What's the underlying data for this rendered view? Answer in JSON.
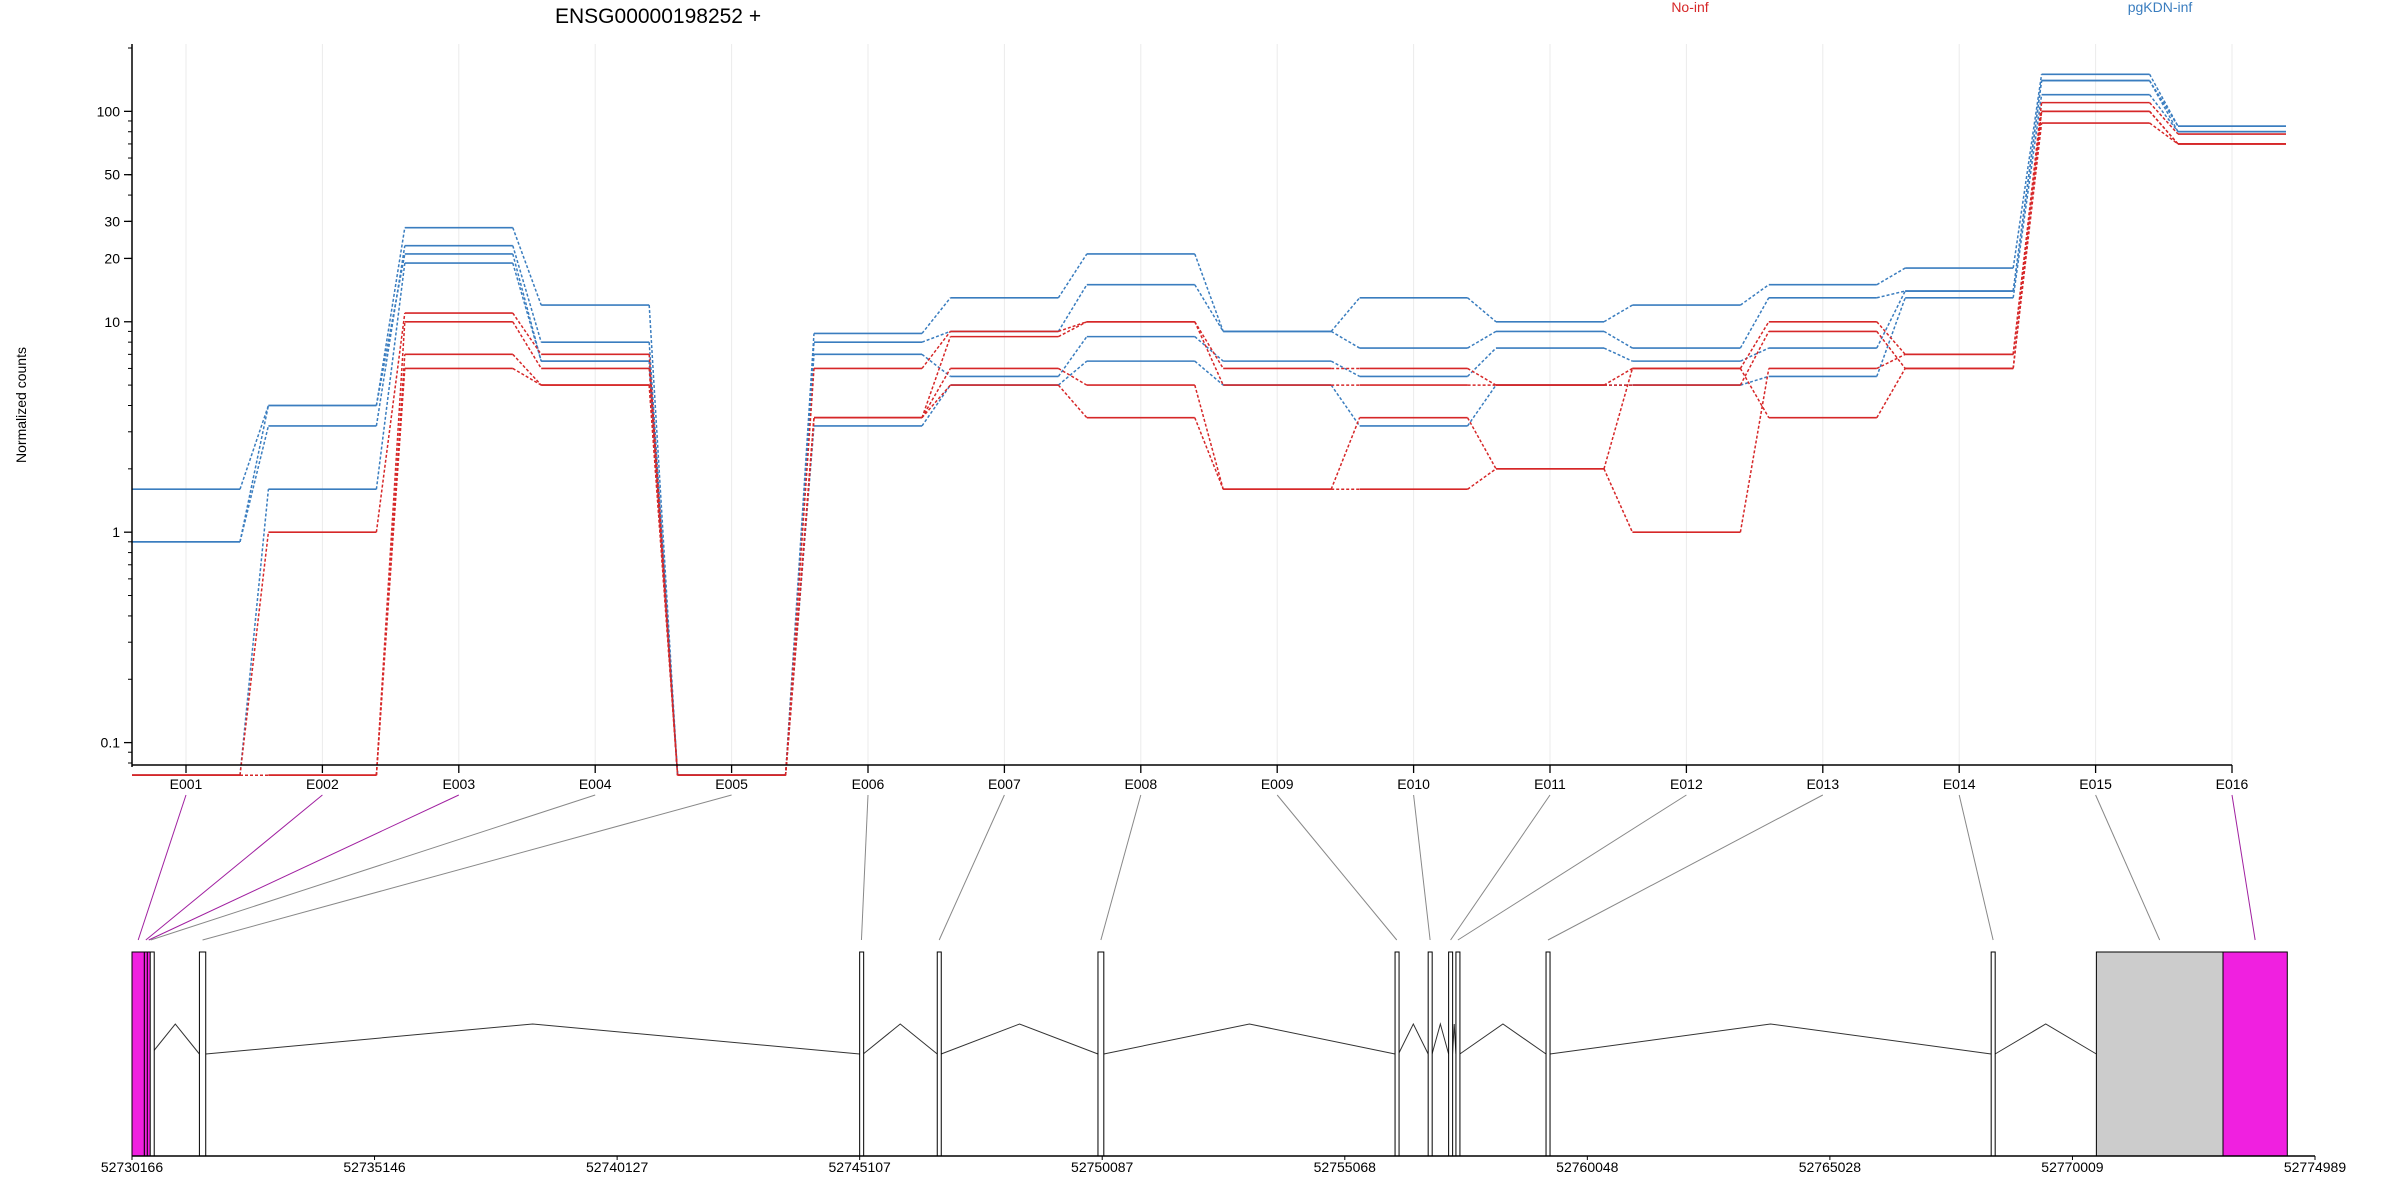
{
  "chart_data": {
    "type": "line",
    "title": "ENSG00000198252 +",
    "ylabel": "Normalized counts",
    "xlabel": "",
    "y_scale": "log",
    "ylim": [
      0.08,
      200
    ],
    "y_ticks": [
      {
        "value": 0.1,
        "label": "0.1"
      },
      {
        "value": 1,
        "label": "1"
      },
      {
        "value": 10,
        "label": "10"
      },
      {
        "value": 20,
        "label": "20"
      },
      {
        "value": 30,
        "label": "30"
      },
      {
        "value": 50,
        "label": "50"
      },
      {
        "value": 100,
        "label": "100"
      }
    ],
    "grid": "vertical",
    "legend": [
      {
        "name": "No-inf",
        "color": "#d62728"
      },
      {
        "name": "pgKDN-inf",
        "color": "#3a7dbf"
      }
    ],
    "categories": [
      "E001",
      "E002",
      "E003",
      "E004",
      "E005",
      "E006",
      "E007",
      "E008",
      "E009",
      "E010",
      "E011",
      "E012",
      "E013",
      "E014",
      "E015",
      "E016"
    ],
    "series": [
      {
        "group": "pgKDN-inf",
        "color": "#3a7dbf",
        "values": [
          1.6,
          4.0,
          28,
          12,
          0.07,
          8.8,
          13,
          21,
          9.0,
          13,
          10,
          12,
          15,
          18,
          150,
          85
        ]
      },
      {
        "group": "pgKDN-inf",
        "color": "#3a7dbf",
        "values": [
          0.9,
          3.2,
          23,
          8.0,
          0.07,
          8.0,
          9.0,
          15,
          9.0,
          7.5,
          9.0,
          7.5,
          13,
          14,
          140,
          85
        ]
      },
      {
        "group": "pgKDN-inf",
        "color": "#3a7dbf",
        "values": [
          0.9,
          4.0,
          21,
          6.5,
          0.07,
          7.0,
          5.5,
          8.5,
          6.5,
          5.5,
          7.5,
          6.5,
          7.5,
          14,
          140,
          80
        ]
      },
      {
        "group": "pgKDN-inf",
        "color": "#3a7dbf",
        "values": [
          0.07,
          1.6,
          19,
          6.5,
          0.07,
          3.2,
          5.0,
          6.5,
          5.0,
          3.2,
          5.0,
          5.0,
          5.5,
          13,
          120,
          80
        ]
      },
      {
        "group": "No-inf",
        "color": "#d62728",
        "values": [
          0.07,
          1.0,
          11,
          7.0,
          0.07,
          6.0,
          9.0,
          10,
          6.0,
          6.0,
          5.0,
          6.0,
          10,
          7.0,
          110,
          78
        ]
      },
      {
        "group": "No-inf",
        "color": "#d62728",
        "values": [
          0.07,
          0.07,
          10,
          6.0,
          0.07,
          3.5,
          8.5,
          10,
          5.0,
          5.0,
          5.0,
          5.0,
          9.0,
          6.0,
          100,
          70
        ]
      },
      {
        "group": "No-inf",
        "color": "#d62728",
        "values": [
          0.07,
          0.07,
          7.0,
          5.0,
          0.07,
          3.5,
          6.0,
          5.0,
          1.6,
          3.5,
          2.0,
          6.0,
          3.5,
          6.0,
          88,
          70
        ]
      },
      {
        "group": "No-inf",
        "color": "#d62728",
        "values": [
          0.07,
          0.07,
          6.0,
          5.0,
          0.07,
          3.5,
          5.0,
          3.5,
          1.6,
          1.6,
          2.0,
          1.0,
          6.0,
          7.0,
          100,
          70
        ]
      }
    ],
    "gene_model": {
      "genomic_start": 52730166,
      "genomic_end": 52774989,
      "axis_ticks": [
        52730166,
        52735146,
        52740127,
        52745107,
        52750087,
        52755068,
        52760048,
        52765028,
        52770009,
        52774989
      ],
      "exons": [
        {
          "id": "E001",
          "start": 52730166,
          "end": 52730420,
          "fill": "#f020e0"
        },
        {
          "id": "E002",
          "start": 52730420,
          "end": 52730480,
          "fill": "#f020e0"
        },
        {
          "id": "E003",
          "start": 52730480,
          "end": 52730540,
          "fill": "#f020e0"
        },
        {
          "id": "E004",
          "start": 52730540,
          "end": 52730560,
          "fill": "#ffffff"
        },
        {
          "id": "E005",
          "start": 52731550,
          "end": 52731680,
          "fill": "#ffffff"
        },
        {
          "id": "E006",
          "start": 52745107,
          "end": 52745180,
          "fill": "#ffffff"
        },
        {
          "id": "E007",
          "start": 52746700,
          "end": 52746780,
          "fill": "#ffffff"
        },
        {
          "id": "E008",
          "start": 52750000,
          "end": 52750120,
          "fill": "#ffffff"
        },
        {
          "id": "E009",
          "start": 52756100,
          "end": 52756170,
          "fill": "#ffffff"
        },
        {
          "id": "E010",
          "start": 52756780,
          "end": 52756860,
          "fill": "#ffffff"
        },
        {
          "id": "E011",
          "start": 52757200,
          "end": 52757280,
          "fill": "#ffffff"
        },
        {
          "id": "E012",
          "start": 52757350,
          "end": 52757430,
          "fill": "#ffffff"
        },
        {
          "id": "E013",
          "start": 52759200,
          "end": 52759280,
          "fill": "#ffffff"
        },
        {
          "id": "E014",
          "start": 52768340,
          "end": 52768420,
          "fill": "#ffffff"
        },
        {
          "id": "E015",
          "start": 52770500,
          "end": 52773100,
          "fill": "#cccccc"
        },
        {
          "id": "E016",
          "start": 52773100,
          "end": 52774420,
          "fill": "#f020e0"
        }
      ]
    }
  }
}
